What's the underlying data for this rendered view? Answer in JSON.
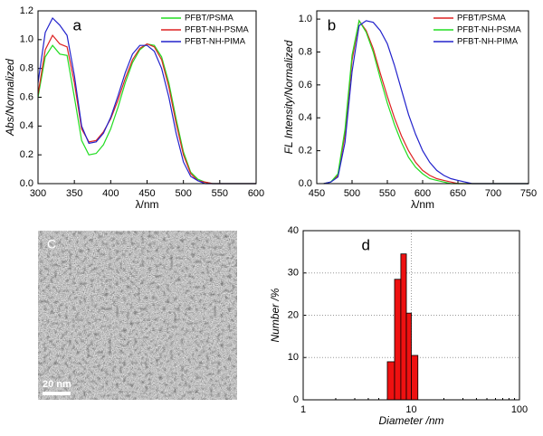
{
  "chart_data": [
    {
      "type": "line",
      "label": "a",
      "xlabel": "λ/nm",
      "ylabel": "Abs/Normalized",
      "x": [
        300,
        310,
        320,
        330,
        340,
        350,
        360,
        370,
        380,
        390,
        400,
        410,
        420,
        430,
        440,
        450,
        460,
        470,
        480,
        490,
        500,
        510,
        520,
        530,
        540,
        550,
        560,
        570,
        580,
        590,
        600
      ],
      "series": [
        {
          "name": "PFBT/PSMA",
          "color": "#22dd22",
          "values": [
            0.6,
            0.88,
            0.96,
            0.9,
            0.89,
            0.6,
            0.3,
            0.2,
            0.21,
            0.27,
            0.38,
            0.53,
            0.7,
            0.84,
            0.93,
            0.97,
            0.96,
            0.88,
            0.7,
            0.45,
            0.22,
            0.08,
            0.03,
            0.01,
            0,
            0,
            0,
            0,
            0,
            0,
            0
          ]
        },
        {
          "name": "PFBT-NH-PSMA",
          "color": "#dd2222",
          "values": [
            0.62,
            0.93,
            1.03,
            0.97,
            0.95,
            0.7,
            0.38,
            0.29,
            0.3,
            0.36,
            0.45,
            0.58,
            0.73,
            0.86,
            0.94,
            0.97,
            0.95,
            0.86,
            0.67,
            0.42,
            0.2,
            0.07,
            0.02,
            0.01,
            0,
            0,
            0,
            0,
            0,
            0,
            0
          ]
        },
        {
          "name": "PFBT-NH-PIMA",
          "color": "#2222cc",
          "values": [
            0.7,
            1.05,
            1.15,
            1.1,
            1.03,
            0.75,
            0.4,
            0.28,
            0.29,
            0.35,
            0.46,
            0.61,
            0.77,
            0.9,
            0.96,
            0.96,
            0.92,
            0.8,
            0.6,
            0.35,
            0.15,
            0.05,
            0.02,
            0,
            0,
            0,
            0,
            0,
            0,
            0,
            0
          ]
        }
      ],
      "xlim": [
        300,
        600
      ],
      "xticks": [
        300,
        350,
        400,
        450,
        500,
        550,
        600
      ],
      "ylim": [
        0,
        1.2
      ],
      "yticks": [
        {
          "value": 0,
          "label": "0.0"
        },
        {
          "value": 0.2,
          "label": "0.2"
        },
        {
          "value": 0.4,
          "label": "0.4"
        },
        {
          "value": 0.6,
          "label": "0.6"
        },
        {
          "value": 0.8,
          "label": "0.8"
        },
        {
          "value": 1,
          "label": "1.0"
        },
        {
          "value": 1.2,
          "label": "1.2"
        }
      ],
      "legend": "upper right",
      "grid": false
    },
    {
      "type": "line",
      "label": "b",
      "xlabel": "λ/nm",
      "ylabel": "FL Intensity/Normalized",
      "x": [
        460,
        470,
        480,
        490,
        500,
        510,
        520,
        530,
        540,
        550,
        560,
        570,
        580,
        590,
        600,
        610,
        620,
        630,
        640,
        650,
        660,
        670,
        680,
        690,
        700,
        710,
        720,
        730,
        740,
        750
      ],
      "series": [
        {
          "name": "PFBT/PSMA",
          "color": "#dd2222",
          "values": [
            0,
            0.01,
            0.05,
            0.3,
            0.75,
            0.99,
            0.93,
            0.82,
            0.67,
            0.53,
            0.4,
            0.29,
            0.2,
            0.13,
            0.08,
            0.05,
            0.03,
            0.02,
            0.01,
            0,
            0,
            0,
            0,
            0,
            0,
            0,
            0,
            0,
            0,
            0
          ]
        },
        {
          "name": "PFBT-NH-PSMA",
          "color": "#22dd22",
          "values": [
            0,
            0.01,
            0.06,
            0.33,
            0.78,
            0.99,
            0.92,
            0.8,
            0.64,
            0.49,
            0.36,
            0.25,
            0.16,
            0.1,
            0.06,
            0.03,
            0.02,
            0.01,
            0,
            0,
            0,
            0,
            0,
            0,
            0,
            0,
            0,
            0,
            0,
            0
          ]
        },
        {
          "name": "PFBT-NH-PIMA",
          "color": "#2222cc",
          "values": [
            0,
            0.01,
            0.04,
            0.25,
            0.68,
            0.96,
            0.99,
            0.98,
            0.93,
            0.85,
            0.72,
            0.57,
            0.42,
            0.3,
            0.2,
            0.13,
            0.08,
            0.05,
            0.03,
            0.02,
            0.01,
            0,
            0,
            0,
            0,
            0,
            0,
            0,
            0,
            0
          ]
        }
      ],
      "xlim": [
        450,
        750
      ],
      "xticks": [
        450,
        500,
        550,
        600,
        650,
        700,
        750
      ],
      "ylim": [
        0,
        1.05
      ],
      "yticks": [
        {
          "value": 0,
          "label": "0.0"
        },
        {
          "value": 0.2,
          "label": "0.2"
        },
        {
          "value": 0.4,
          "label": "0.4"
        },
        {
          "value": 0.6,
          "label": "0.6"
        },
        {
          "value": 0.8,
          "label": "0.8"
        },
        {
          "value": 1,
          "label": "1.0"
        }
      ],
      "legend": "upper right",
      "grid": false
    },
    {
      "type": "histogram",
      "label": "d",
      "xlabel": "Diameter /nm",
      "ylabel": "Number /%",
      "bins": [
        6,
        7,
        8,
        9,
        10,
        11.5
      ],
      "values": [
        9,
        28.5,
        34.5,
        20.5,
        10.5
      ],
      "color": "#ee1111",
      "xlim": [
        1,
        100
      ],
      "xticks": [
        1,
        10,
        100
      ],
      "log_x": true,
      "ylim": [
        0,
        40
      ],
      "yticks": [
        0,
        10,
        20,
        30,
        40
      ],
      "grid": true
    }
  ],
  "image_panel": {
    "label": "C",
    "scale_bar": "20 nm"
  }
}
